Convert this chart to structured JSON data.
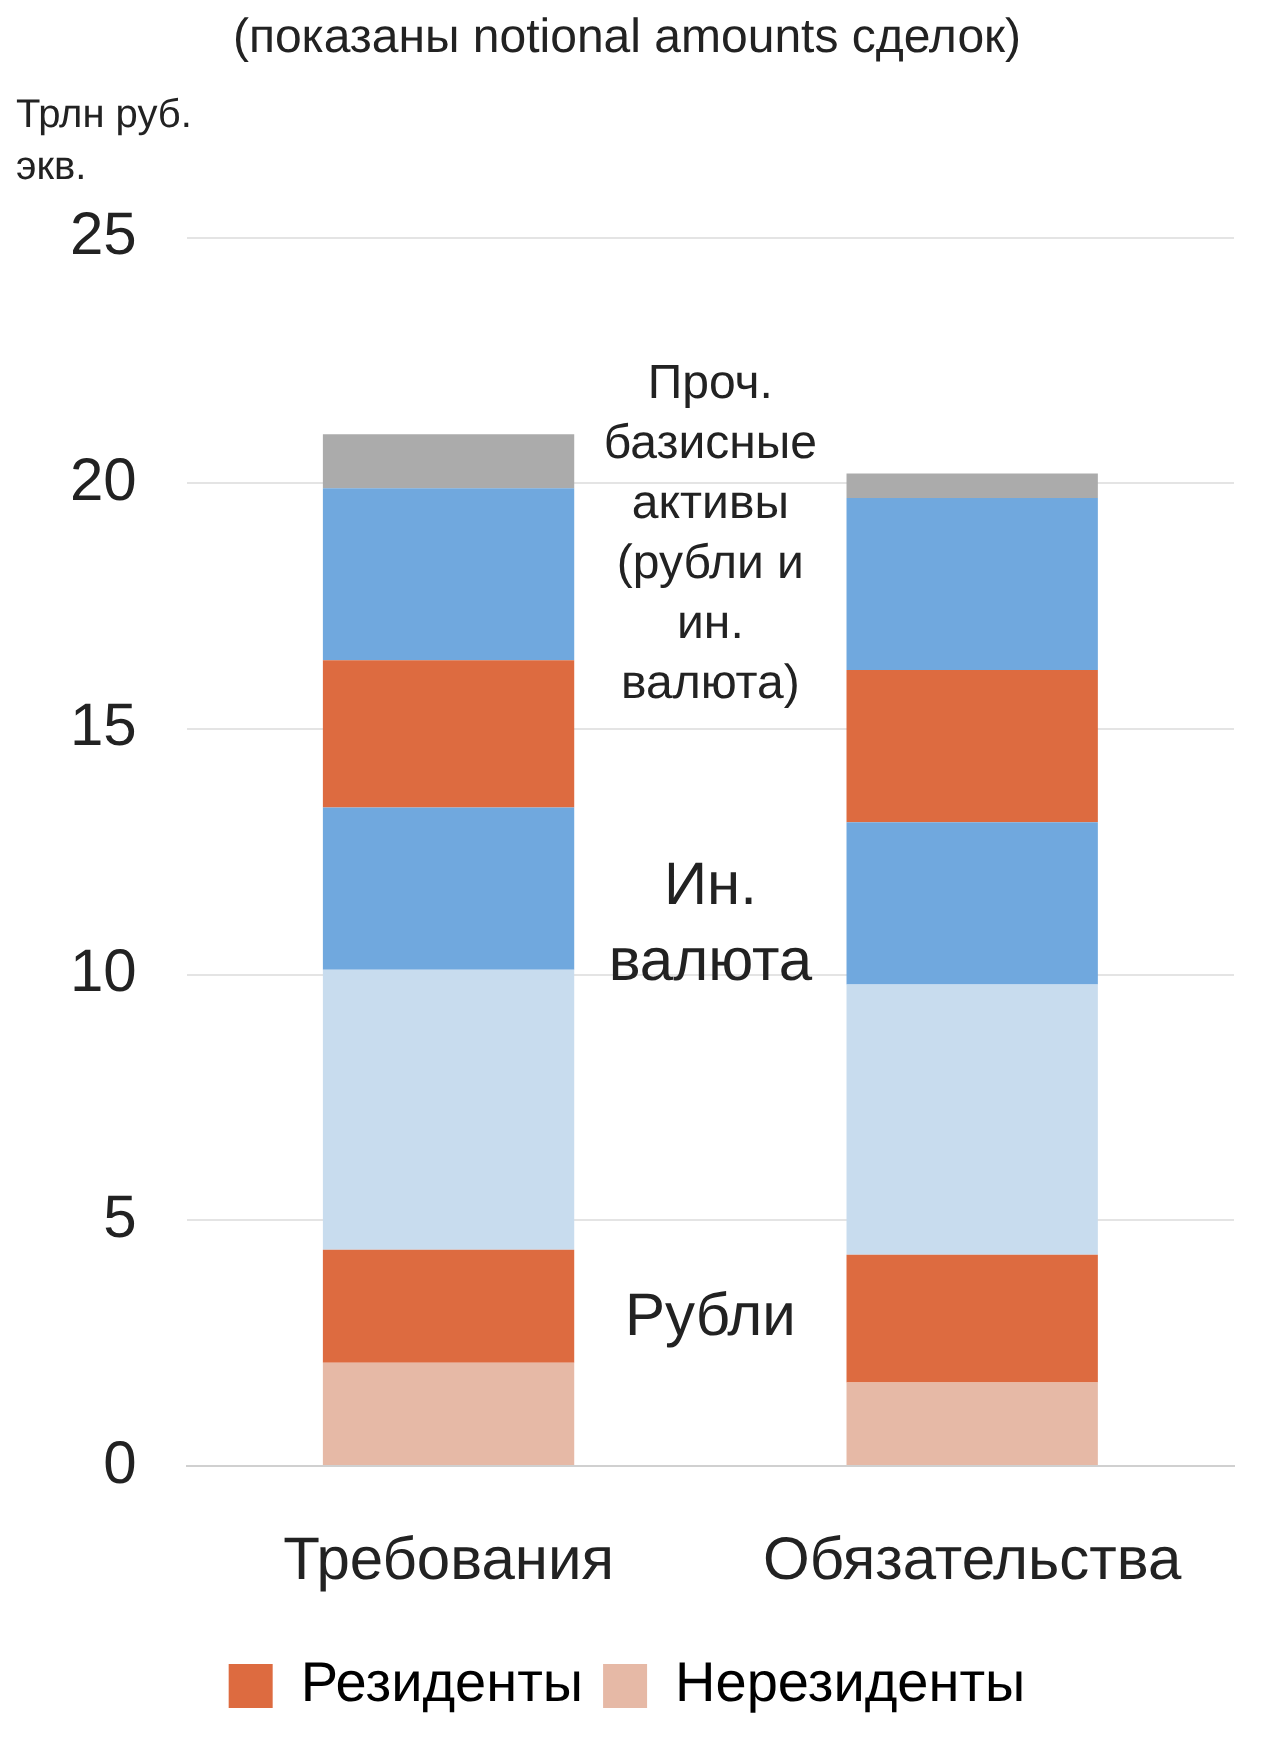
{
  "chart_data": {
    "type": "bar",
    "title": "(показаны notional amounts сделок)",
    "ylabel": "Трлн руб. экв.",
    "categories": [
      "Требования",
      "Обязательства"
    ],
    "stacked": true,
    "series": [
      {
        "name": "Нерезиденты",
        "color": "#e6b9a6",
        "values": [
          2.1,
          1.7
        ]
      },
      {
        "name": "Резиденты",
        "color": "#dd6b40",
        "values": [
          2.3,
          2.6
        ]
      },
      {
        "color": "#c8dcee",
        "values": [
          5.7,
          5.5
        ]
      },
      {
        "color": "#70a8de",
        "values": [
          3.3,
          3.3
        ]
      },
      {
        "color": "#dd6b40",
        "values": [
          3.0,
          3.1
        ]
      },
      {
        "color": "#70a8de",
        "values": [
          3.5,
          3.5
        ]
      },
      {
        "color": "#ababab",
        "values": [
          1.1,
          0.5
        ]
      }
    ],
    "ylim": [
      0,
      25
    ],
    "yticks": [
      0,
      5,
      10,
      15,
      20,
      25
    ],
    "grid": "y",
    "legend": "bottom",
    "annotations": [
      "Рубли",
      "Ин. валюта",
      "Проч. базисные активы (рубли и ин. валюта)"
    ]
  }
}
